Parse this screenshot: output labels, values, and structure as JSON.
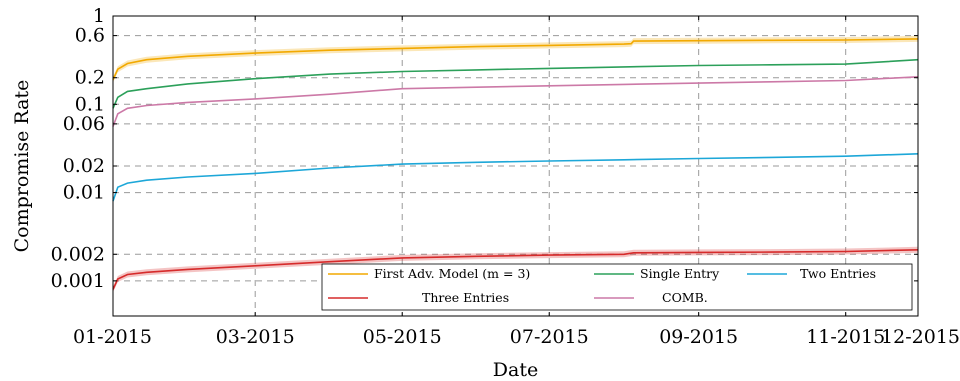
{
  "chart_data": {
    "type": "line",
    "xlabel": "Date",
    "ylabel": "Compromise Rate",
    "y_scale": "log",
    "ylim": [
      0.0004,
      1
    ],
    "xlim": [
      "2015-01-01",
      "2015-12-01"
    ],
    "x_ticks": [
      "2015-01-01",
      "2015-03-01",
      "2015-05-01",
      "2015-07-01",
      "2015-09-01",
      "2015-11-01",
      "2015-12-01"
    ],
    "x_tick_labels": [
      "01-2015",
      "03-2015",
      "05-2015",
      "07-2015",
      "09-2015",
      "11-2015",
      "12-2015"
    ],
    "y_ticks": [
      0.001,
      0.002,
      0.01,
      0.02,
      0.06,
      0.1,
      0.2,
      0.6,
      1
    ],
    "y_tick_labels": [
      "0.001",
      "0.002",
      "0.01",
      "0.02",
      "0.06",
      "0.1",
      "0.2",
      "0.6",
      "1"
    ],
    "grid": true,
    "legend_position": "bottom-right",
    "series": [
      {
        "name": "First Adv. Model (m = 3)",
        "color": "#f2a900",
        "band": true,
        "x": [
          "2015-01-01",
          "2015-01-03",
          "2015-01-07",
          "2015-01-15",
          "2015-02-01",
          "2015-03-01",
          "2015-04-01",
          "2015-05-01",
          "2015-06-01",
          "2015-07-01",
          "2015-08-01",
          "2015-08-04",
          "2015-08-05",
          "2015-09-01",
          "2015-10-01",
          "2015-11-01",
          "2015-12-01"
        ],
        "y": [
          0.19,
          0.25,
          0.29,
          0.32,
          0.35,
          0.38,
          0.41,
          0.43,
          0.45,
          0.465,
          0.48,
          0.485,
          0.52,
          0.525,
          0.53,
          0.535,
          0.55
        ]
      },
      {
        "name": "Single Entry",
        "color": "#2ca05a",
        "x": [
          "2015-01-01",
          "2015-01-03",
          "2015-01-07",
          "2015-01-15",
          "2015-02-01",
          "2015-03-01",
          "2015-04-01",
          "2015-05-01",
          "2015-06-01",
          "2015-07-01",
          "2015-08-01",
          "2015-09-01",
          "2015-10-01",
          "2015-11-01",
          "2015-12-01"
        ],
        "y": [
          0.09,
          0.12,
          0.14,
          0.15,
          0.17,
          0.195,
          0.22,
          0.235,
          0.245,
          0.255,
          0.265,
          0.275,
          0.28,
          0.285,
          0.32
        ]
      },
      {
        "name": "Two Entries",
        "color": "#1da7d8",
        "x": [
          "2015-01-01",
          "2015-01-03",
          "2015-01-07",
          "2015-01-15",
          "2015-02-01",
          "2015-03-01",
          "2015-04-01",
          "2015-05-01",
          "2015-06-01",
          "2015-07-01",
          "2015-08-01",
          "2015-09-01",
          "2015-10-01",
          "2015-11-01",
          "2015-12-01"
        ],
        "y": [
          0.008,
          0.0115,
          0.0128,
          0.0138,
          0.015,
          0.0165,
          0.019,
          0.021,
          0.022,
          0.0228,
          0.0235,
          0.0243,
          0.025,
          0.0258,
          0.0275
        ]
      },
      {
        "name": "Three Entries",
        "color": "#d62b2b",
        "band": true,
        "x": [
          "2015-01-01",
          "2015-01-03",
          "2015-01-07",
          "2015-01-15",
          "2015-02-01",
          "2015-03-01",
          "2015-04-01",
          "2015-05-01",
          "2015-06-01",
          "2015-07-01",
          "2015-08-01",
          "2015-08-05",
          "2015-09-01",
          "2015-10-01",
          "2015-11-01",
          "2015-12-01"
        ],
        "y": [
          0.0008,
          0.00105,
          0.00118,
          0.00125,
          0.00135,
          0.00148,
          0.00165,
          0.00182,
          0.0019,
          0.00196,
          0.002,
          0.00208,
          0.0021,
          0.00212,
          0.00215,
          0.00225
        ]
      },
      {
        "name": "COMB.",
        "color": "#cc79a7",
        "x": [
          "2015-01-01",
          "2015-01-03",
          "2015-01-07",
          "2015-01-15",
          "2015-02-01",
          "2015-03-01",
          "2015-04-01",
          "2015-05-01",
          "2015-06-01",
          "2015-07-01",
          "2015-08-01",
          "2015-09-01",
          "2015-10-01",
          "2015-11-01",
          "2015-12-01"
        ],
        "y": [
          0.056,
          0.078,
          0.09,
          0.097,
          0.105,
          0.115,
          0.13,
          0.15,
          0.156,
          0.162,
          0.168,
          0.174,
          0.18,
          0.186,
          0.205
        ]
      }
    ]
  }
}
